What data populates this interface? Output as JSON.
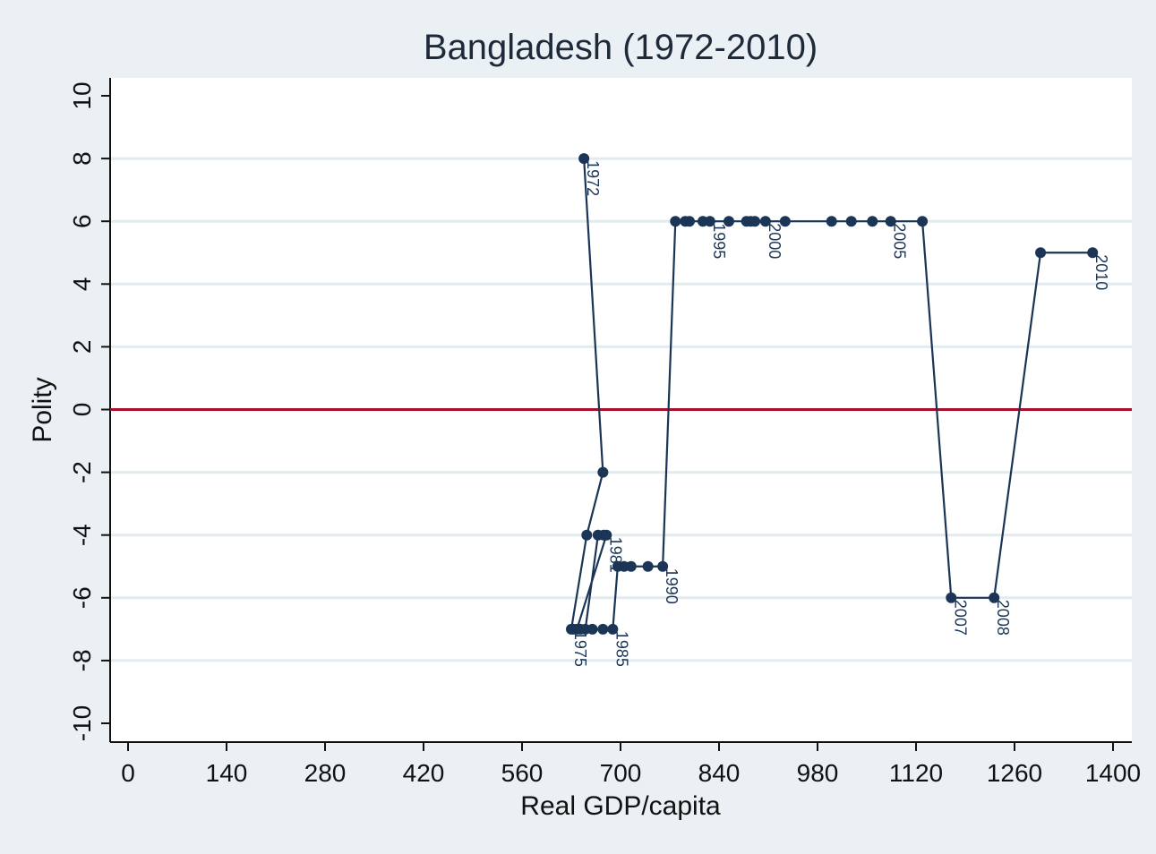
{
  "chart_data": {
    "type": "line",
    "title": "Bangladesh (1972-2010)",
    "xlabel": "Real GDP/capita",
    "ylabel": "Polity",
    "xlim": [
      0,
      1400
    ],
    "ylim": [
      -10,
      10
    ],
    "xticks": [
      0,
      140,
      280,
      420,
      560,
      700,
      840,
      980,
      1120,
      1260,
      1400
    ],
    "yticks": [
      -10,
      -8,
      -6,
      -4,
      -2,
      0,
      2,
      4,
      6,
      8,
      10
    ],
    "grid": true,
    "reference_line": {
      "y": 0,
      "color": "#a50f2a"
    },
    "colors": {
      "series": "#1a3556",
      "background": "#eaf0f3",
      "plot": "#ffffff",
      "grid": "#e3ebee"
    },
    "labeled_years": [
      1972,
      1975,
      1981,
      1985,
      1990,
      1995,
      2000,
      2005,
      2007,
      2008,
      2010
    ],
    "points": [
      {
        "year": 1972,
        "x": 648,
        "y": 8
      },
      {
        "year": 1973,
        "x": 675,
        "y": -2
      },
      {
        "year": 1974,
        "x": 652,
        "y": -4
      },
      {
        "year": 1975,
        "x": 630,
        "y": -7
      },
      {
        "year": 1976,
        "x": 633,
        "y": -7
      },
      {
        "year": 1977,
        "x": 643,
        "y": -7
      },
      {
        "year": 1978,
        "x": 650,
        "y": -7
      },
      {
        "year": 1979,
        "x": 668,
        "y": -4
      },
      {
        "year": 1980,
        "x": 676,
        "y": -4
      },
      {
        "year": 1981,
        "x": 680,
        "y": -4
      },
      {
        "year": 1982,
        "x": 638,
        "y": -7
      },
      {
        "year": 1983,
        "x": 660,
        "y": -7
      },
      {
        "year": 1984,
        "x": 675,
        "y": -7
      },
      {
        "year": 1985,
        "x": 689,
        "y": -7
      },
      {
        "year": 1986,
        "x": 696,
        "y": -5
      },
      {
        "year": 1987,
        "x": 705,
        "y": -5
      },
      {
        "year": 1988,
        "x": 715,
        "y": -5
      },
      {
        "year": 1989,
        "x": 739,
        "y": -5
      },
      {
        "year": 1990,
        "x": 760,
        "y": -5
      },
      {
        "year": 1991,
        "x": 778,
        "y": 6
      },
      {
        "year": 1992,
        "x": 792,
        "y": 6
      },
      {
        "year": 1993,
        "x": 798,
        "y": 6
      },
      {
        "year": 1994,
        "x": 817,
        "y": 6
      },
      {
        "year": 1995,
        "x": 827,
        "y": 6
      },
      {
        "year": 1996,
        "x": 854,
        "y": 6
      },
      {
        "year": 1997,
        "x": 879,
        "y": 6
      },
      {
        "year": 1998,
        "x": 885,
        "y": 6
      },
      {
        "year": 1999,
        "x": 891,
        "y": 6
      },
      {
        "year": 2000,
        "x": 906,
        "y": 6
      },
      {
        "year": 2001,
        "x": 934,
        "y": 6
      },
      {
        "year": 2002,
        "x": 1000,
        "y": 6
      },
      {
        "year": 2003,
        "x": 1028,
        "y": 6
      },
      {
        "year": 2004,
        "x": 1058,
        "y": 6
      },
      {
        "year": 2005,
        "x": 1084,
        "y": 6
      },
      {
        "year": 2006,
        "x": 1129,
        "y": 6
      },
      {
        "year": 2007,
        "x": 1170,
        "y": -6
      },
      {
        "year": 2008,
        "x": 1231,
        "y": -6
      },
      {
        "year": 2009,
        "x": 1297,
        "y": 5
      },
      {
        "year": 2010,
        "x": 1371,
        "y": 5
      }
    ]
  }
}
